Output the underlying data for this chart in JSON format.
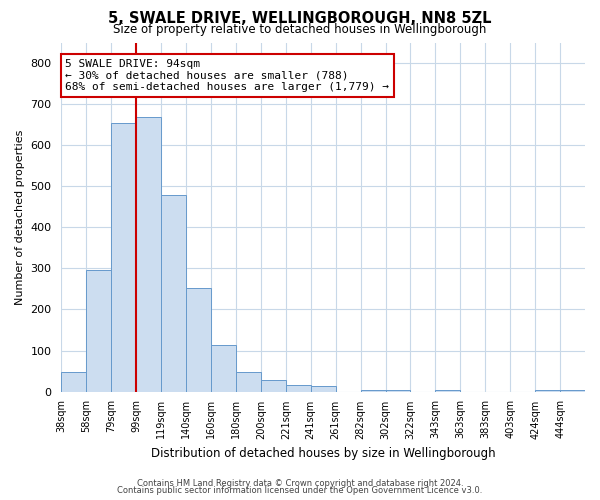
{
  "title": "5, SWALE DRIVE, WELLINGBOROUGH, NN8 5ZL",
  "subtitle": "Size of property relative to detached houses in Wellingborough",
  "xlabel": "Distribution of detached houses by size in Wellingborough",
  "ylabel": "Number of detached properties",
  "bar_labels": [
    "38sqm",
    "58sqm",
    "79sqm",
    "99sqm",
    "119sqm",
    "140sqm",
    "160sqm",
    "180sqm",
    "200sqm",
    "221sqm",
    "241sqm",
    "261sqm",
    "282sqm",
    "302sqm",
    "322sqm",
    "343sqm",
    "363sqm",
    "383sqm",
    "403sqm",
    "424sqm",
    "444sqm"
  ],
  "bar_heights": [
    48,
    295,
    655,
    668,
    478,
    253,
    113,
    48,
    28,
    15,
    13,
    0,
    5,
    3,
    0,
    5,
    0,
    0,
    0,
    3,
    5
  ],
  "bar_color": "#ccddf0",
  "bar_edge_color": "#6699cc",
  "vline_x": 3.0,
  "vline_color": "#cc0000",
  "ylim": [
    0,
    850
  ],
  "yticks": [
    0,
    100,
    200,
    300,
    400,
    500,
    600,
    700,
    800
  ],
  "annotation_title": "5 SWALE DRIVE: 94sqm",
  "annotation_line1": "← 30% of detached houses are smaller (788)",
  "annotation_line2": "68% of semi-detached houses are larger (1,779) →",
  "annotation_box_color": "#ffffff",
  "annotation_box_edge": "#cc0000",
  "footer1": "Contains HM Land Registry data © Crown copyright and database right 2024.",
  "footer2": "Contains public sector information licensed under the Open Government Licence v3.0.",
  "background_color": "#ffffff",
  "grid_color": "#c8d8e8"
}
